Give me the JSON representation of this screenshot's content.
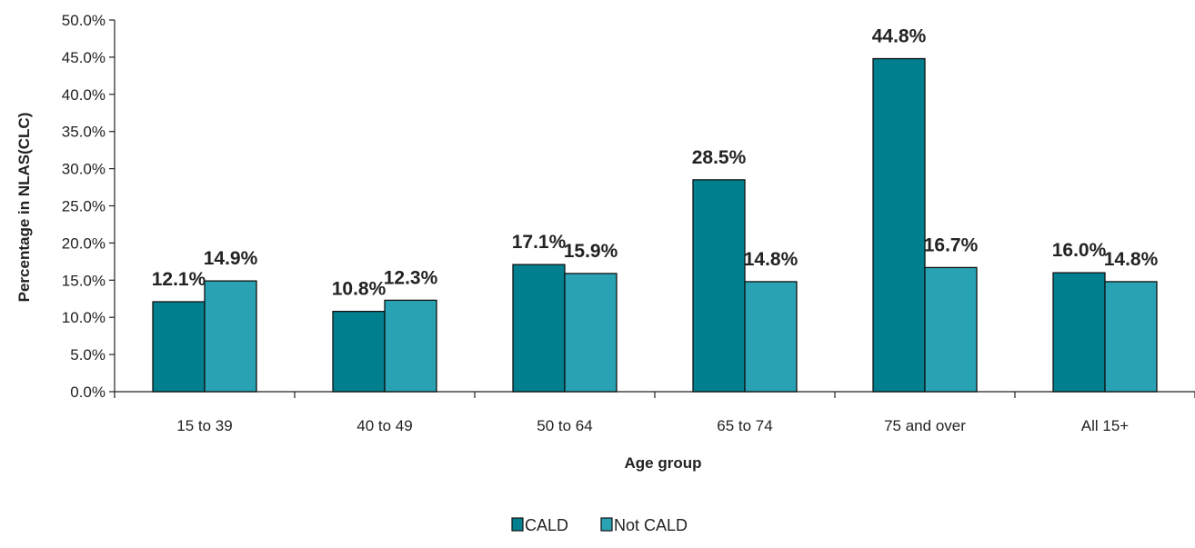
{
  "chart_data": {
    "type": "bar",
    "categories": [
      "15 to 39",
      "40 to 49",
      "50 to 64",
      "65 to 74",
      "75 and over",
      "All 15+"
    ],
    "series": [
      {
        "name": "CALD",
        "color": "#00808f",
        "values": [
          12.1,
          10.8,
          17.1,
          28.5,
          44.8,
          16.0
        ],
        "labels": [
          "12.1%",
          "10.8%",
          "17.1%",
          "28.5%",
          "44.8%",
          "16.0%"
        ]
      },
      {
        "name": "Not CALD",
        "color": "#29a3b3",
        "values": [
          14.9,
          12.3,
          15.9,
          14.8,
          16.7,
          14.8
        ],
        "labels": [
          "14.9%",
          "12.3%",
          "15.9%",
          "14.8%",
          "16.7%",
          "14.8%"
        ]
      }
    ],
    "xlabel": "Age group",
    "ylabel": "Percentage in NLAS(CLC)",
    "ylim": [
      0,
      50
    ],
    "yticks": [
      0,
      5,
      10,
      15,
      20,
      25,
      30,
      35,
      40,
      45,
      50
    ],
    "ytick_labels": [
      "0.0%",
      "5.0%",
      "10.0%",
      "15.0%",
      "20.0%",
      "25.0%",
      "30.0%",
      "35.0%",
      "40.0%",
      "45.0%",
      "50.0%"
    ],
    "grid": false,
    "legend_position": "bottom"
  }
}
